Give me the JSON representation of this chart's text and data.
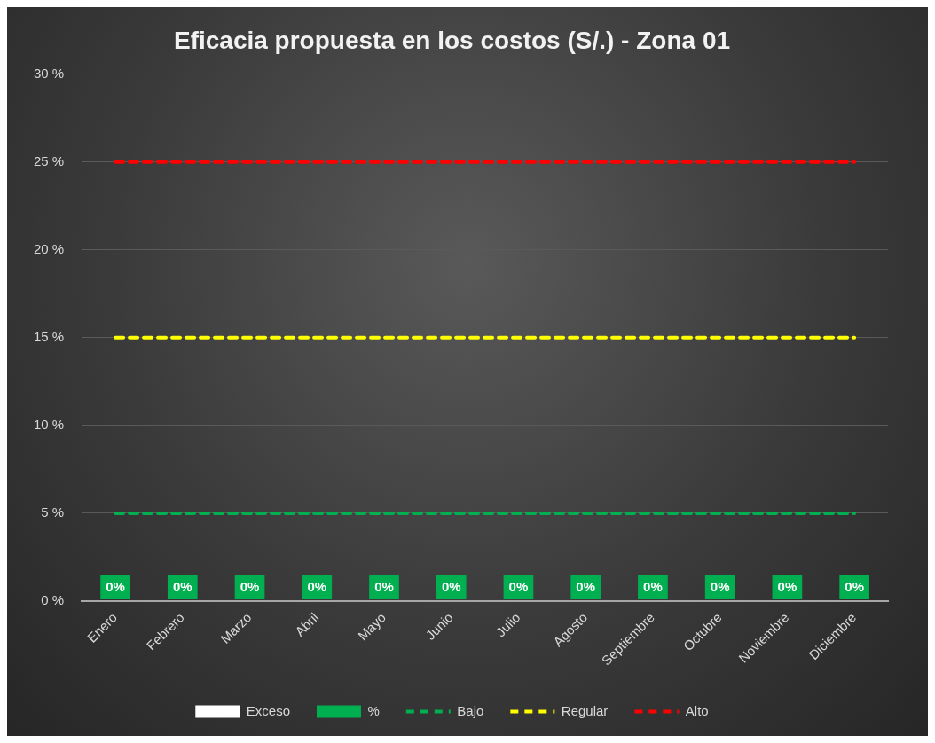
{
  "chart_data": {
    "type": "bar",
    "title": "Eficacia propuesta en los costos (S/.) - Zona 01",
    "categories": [
      "Enero",
      "Febrero",
      "Marzo",
      "Abril",
      "Mayo",
      "Junio",
      "Julio",
      "Agosto",
      "Septiembre",
      "Octubre",
      "Noviembre",
      "Diciembre"
    ],
    "series": [
      {
        "name": "Exceso",
        "color": "#ffffff",
        "values": [
          0,
          0,
          0,
          0,
          0,
          0,
          0,
          0,
          0,
          0,
          0,
          0
        ]
      },
      {
        "name": "%",
        "color": "#00b050",
        "values": [
          0,
          0,
          0,
          0,
          0,
          0,
          0,
          0,
          0,
          0,
          0,
          0
        ],
        "value_labels": [
          "0%",
          "0%",
          "0%",
          "0%",
          "0%",
          "0%",
          "0%",
          "0%",
          "0%",
          "0%",
          "0%",
          "0%"
        ]
      },
      {
        "name": "Bajo",
        "type": "line",
        "color": "#00b050",
        "line_style": "dashed",
        "values": [
          5,
          5,
          5,
          5,
          5,
          5,
          5,
          5,
          5,
          5,
          5,
          5
        ]
      },
      {
        "name": "Regular",
        "type": "line",
        "color": "#ffff00",
        "line_style": "dashed",
        "values": [
          15,
          15,
          15,
          15,
          15,
          15,
          15,
          15,
          15,
          15,
          15,
          15
        ]
      },
      {
        "name": "Alto",
        "type": "line",
        "color": "#ff0000",
        "line_style": "dashed",
        "values": [
          25,
          25,
          25,
          25,
          25,
          25,
          25,
          25,
          25,
          25,
          25,
          25
        ]
      }
    ],
    "ylim": [
      0,
      30
    ],
    "yticks": [
      {
        "value": 0,
        "label": "0 %"
      },
      {
        "value": 5,
        "label": "5 %"
      },
      {
        "value": 10,
        "label": "10 %"
      },
      {
        "value": 15,
        "label": "15 %"
      },
      {
        "value": 20,
        "label": "20 %"
      },
      {
        "value": 25,
        "label": "25 %"
      },
      {
        "value": 30,
        "label": "30 %"
      }
    ],
    "grid": "y",
    "legend": "bottom",
    "marker": "none"
  }
}
